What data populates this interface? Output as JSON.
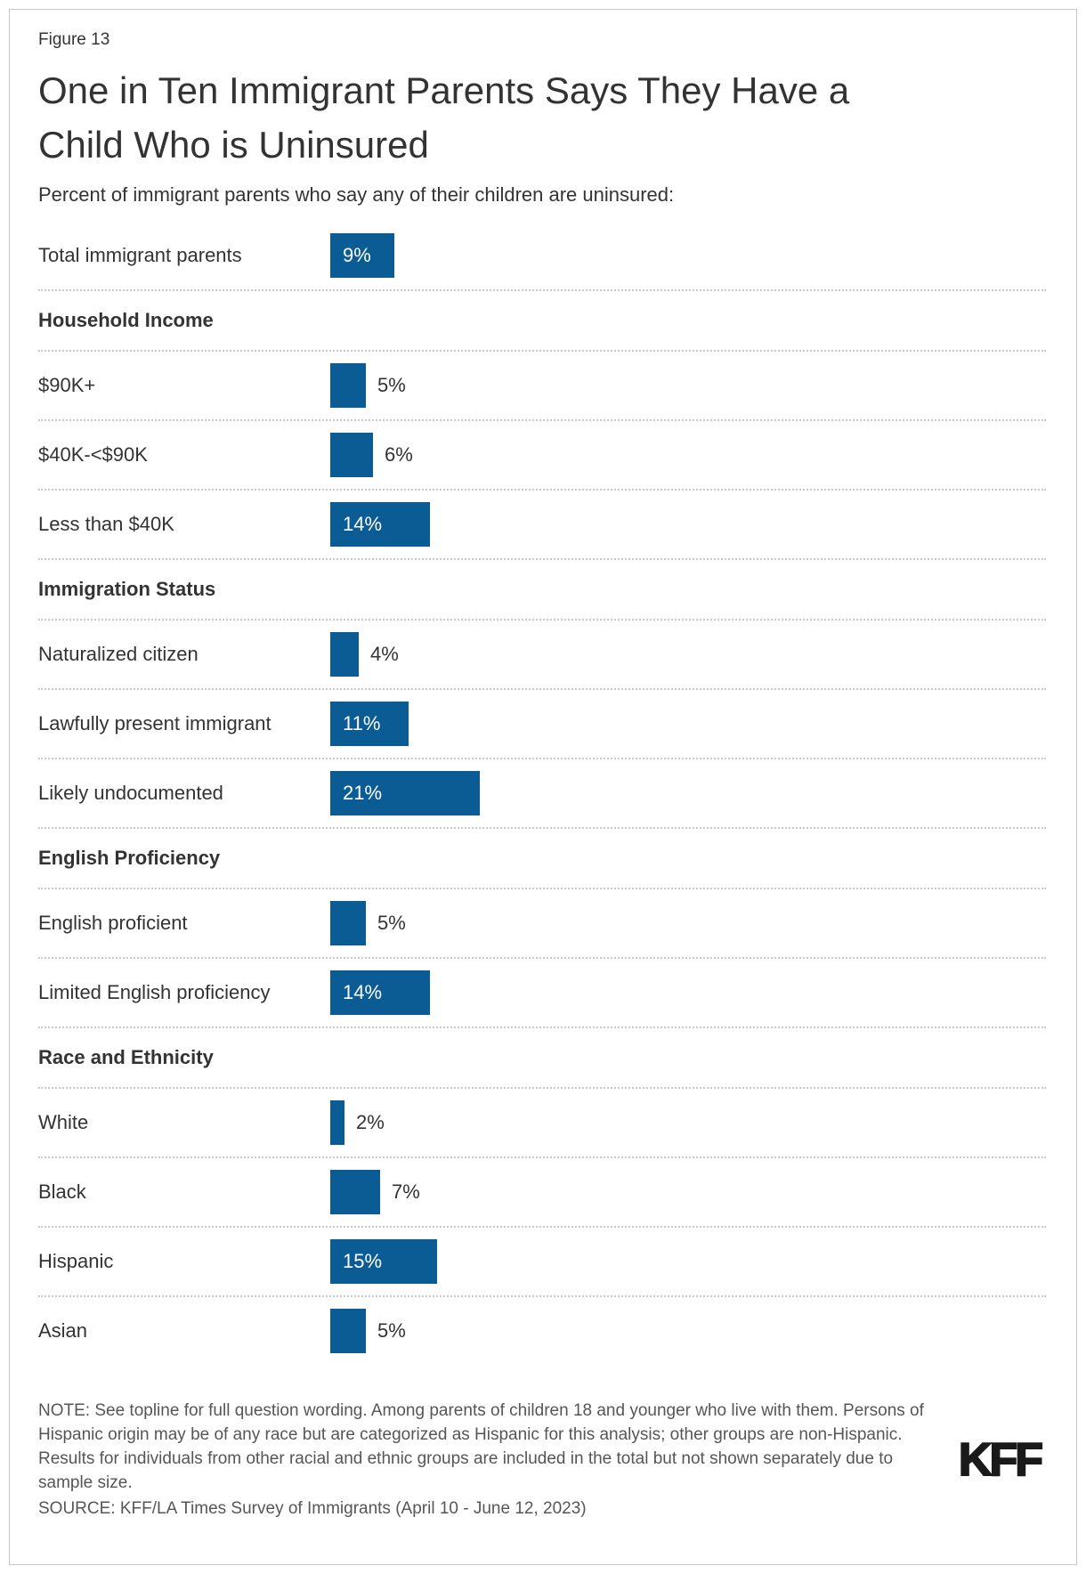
{
  "figure_label": "Figure 13",
  "title": "One in Ten Immigrant Parents Says They Have a Child Who is Uninsured",
  "subtitle": "Percent of immigrant parents who say any of their children are uninsured:",
  "colors": {
    "bar": "#0b5c94",
    "text": "#333333",
    "note_text": "#565656",
    "separator": "#cbcbcb",
    "inside_value_label": "#ffffff"
  },
  "chart_data": {
    "type": "bar",
    "orientation": "horizontal",
    "unit": "%",
    "xlim": [
      0,
      25
    ],
    "grid": false,
    "legend": "none",
    "value_labels": "on-bars",
    "rows": [
      {
        "kind": "bar",
        "label": "Total immigrant parents",
        "value": 9,
        "value_label": "9%",
        "value_label_position": "inside"
      },
      {
        "kind": "header",
        "label": "Household Income"
      },
      {
        "kind": "bar",
        "label": "$90K+",
        "value": 5,
        "value_label": "5%",
        "value_label_position": "outside"
      },
      {
        "kind": "bar",
        "label": "$40K-<$90K",
        "value": 6,
        "value_label": "6%",
        "value_label_position": "outside"
      },
      {
        "kind": "bar",
        "label": "Less than $40K",
        "value": 14,
        "value_label": "14%",
        "value_label_position": "inside"
      },
      {
        "kind": "header",
        "label": "Immigration Status"
      },
      {
        "kind": "bar",
        "label": "Naturalized citizen",
        "value": 4,
        "value_label": "4%",
        "value_label_position": "outside"
      },
      {
        "kind": "bar",
        "label": "Lawfully present immigrant",
        "value": 11,
        "value_label": "11%",
        "value_label_position": "inside"
      },
      {
        "kind": "bar",
        "label": "Likely undocumented",
        "value": 21,
        "value_label": "21%",
        "value_label_position": "inside"
      },
      {
        "kind": "header",
        "label": "English Proficiency"
      },
      {
        "kind": "bar",
        "label": "English proficient",
        "value": 5,
        "value_label": "5%",
        "value_label_position": "outside"
      },
      {
        "kind": "bar",
        "label": "Limited English proficiency",
        "value": 14,
        "value_label": "14%",
        "value_label_position": "inside"
      },
      {
        "kind": "header",
        "label": "Race and Ethnicity"
      },
      {
        "kind": "bar",
        "label": "White",
        "value": 2,
        "value_label": "2%",
        "value_label_position": "outside"
      },
      {
        "kind": "bar",
        "label": "Black",
        "value": 7,
        "value_label": "7%",
        "value_label_position": "outside"
      },
      {
        "kind": "bar",
        "label": "Hispanic",
        "value": 15,
        "value_label": "15%",
        "value_label_position": "inside"
      },
      {
        "kind": "bar",
        "label": "Asian",
        "value": 5,
        "value_label": "5%",
        "value_label_position": "outside"
      }
    ]
  },
  "note": "NOTE: See topline for full question wording. Among parents of children 18 and younger who live with them. Persons of Hispanic origin may be of any race but are categorized as Hispanic for this analysis; other groups are non-Hispanic. Results for individuals from other racial and ethnic groups are included in the total but not shown separately due to sample size.",
  "source": "SOURCE: KFF/LA Times Survey of Immigrants (April 10 - June 12, 2023)",
  "logo_text": "KFF"
}
